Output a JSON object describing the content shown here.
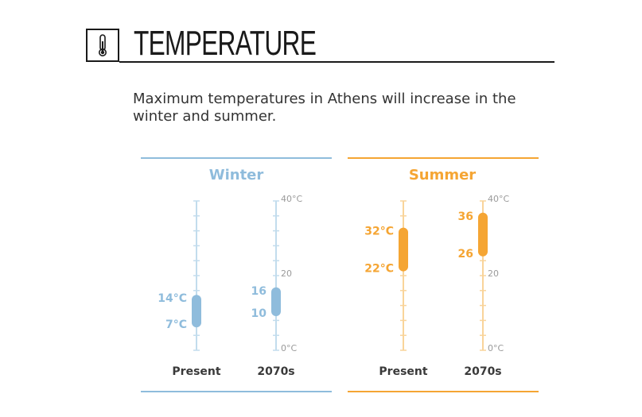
{
  "header": {
    "title": "TEMPERATURE",
    "icon": "thermometer-icon"
  },
  "subtitle": "Maximum temperatures in Athens will increase in the winter and summer.",
  "colors": {
    "winter": "#8fbcdc",
    "winter_axis": "#c2dced",
    "summer": "#f5a533",
    "summer_axis": "#f9d49a",
    "text": "#333333"
  },
  "chart_data": {
    "type": "range-bar",
    "unit": "°C",
    "ylim": [
      0,
      40
    ],
    "y_ticks": [
      "0°C",
      "20",
      "40°C"
    ],
    "panels": [
      {
        "name": "Winter",
        "categories": [
          "Present",
          "2070s"
        ],
        "ranges": [
          {
            "low": 7,
            "high": 14,
            "low_label": "7°C",
            "high_label": "14°C"
          },
          {
            "low": 10,
            "high": 16,
            "low_label": "10",
            "high_label": "16"
          }
        ]
      },
      {
        "name": "Summer",
        "categories": [
          "Present",
          "2070s"
        ],
        "ranges": [
          {
            "low": 22,
            "high": 32,
            "low_label": "22°C",
            "high_label": "32°C"
          },
          {
            "low": 26,
            "high": 36,
            "low_label": "26",
            "high_label": "36"
          }
        ]
      }
    ]
  }
}
